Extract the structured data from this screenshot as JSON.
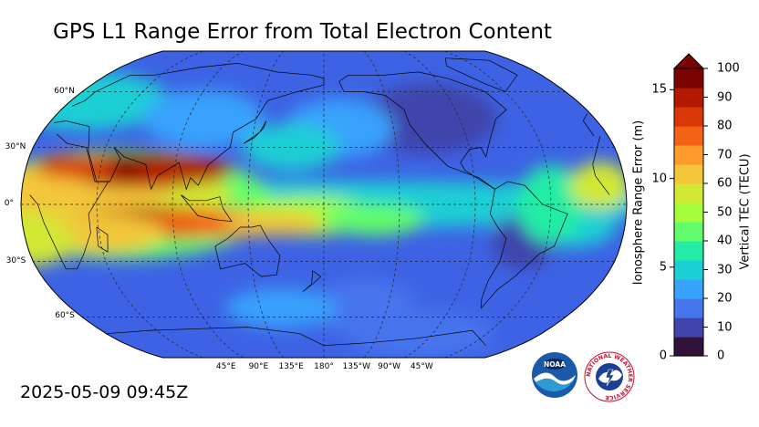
{
  "title": "GPS L1 Range Error from Total Electron Content",
  "timestamp": "2025-05-09 09:45Z",
  "map": {
    "latitude_labels": [
      {
        "text": "60°N",
        "lat": 60
      },
      {
        "text": "30°N",
        "lat": 30
      },
      {
        "text": "0°",
        "lat": 0
      },
      {
        "text": "30°S",
        "lat": -30
      },
      {
        "text": "60°S",
        "lat": -60
      }
    ],
    "longitude_labels": [
      {
        "text": "45°E",
        "lon": 45
      },
      {
        "text": "90°E",
        "lon": 90
      },
      {
        "text": "135°E",
        "lon": 135
      },
      {
        "text": "180°",
        "lon": 180
      },
      {
        "text": "135°W",
        "lon": -135
      },
      {
        "text": "90°W",
        "lon": -90
      },
      {
        "text": "45°W",
        "lon": -45
      }
    ],
    "central_longitude": 180,
    "projection": "Robinson",
    "gridlines": true
  },
  "colorbar": {
    "left_axis_label": "Ionosphere Range Error (m)",
    "right_axis_label": "Vertical TEC (TECU)",
    "left_ticks": [
      {
        "text": "0",
        "value": 0
      },
      {
        "text": "5",
        "value": 5
      },
      {
        "text": "10",
        "value": 10
      },
      {
        "text": "15",
        "value": 15
      }
    ],
    "right_ticks": [
      {
        "text": "0",
        "value": 0
      },
      {
        "text": "10",
        "value": 10
      },
      {
        "text": "20",
        "value": 20
      },
      {
        "text": "30",
        "value": 30
      },
      {
        "text": "40",
        "value": 40
      },
      {
        "text": "50",
        "value": 50
      },
      {
        "text": "60",
        "value": 60
      },
      {
        "text": "70",
        "value": 70
      },
      {
        "text": "80",
        "value": 80
      },
      {
        "text": "90",
        "value": 90
      },
      {
        "text": "100",
        "value": 100
      }
    ],
    "tec_range": [
      0,
      100
    ],
    "range_error_range": [
      0,
      16.2
    ],
    "extend": "max",
    "colormap": [
      "#30123b",
      "#4145ab",
      "#4675ed",
      "#39a2fc",
      "#1bcfd4",
      "#24eca6",
      "#61fc6c",
      "#a4fc3b",
      "#d1e834",
      "#f3c63a",
      "#fe9b2d",
      "#f36315",
      "#d93806",
      "#b11901",
      "#7a0402"
    ]
  },
  "logos": {
    "noaa": {
      "text": "NOAA"
    },
    "nws": {
      "ring_text": "NATIONAL WEATHER SERVICE"
    }
  }
}
